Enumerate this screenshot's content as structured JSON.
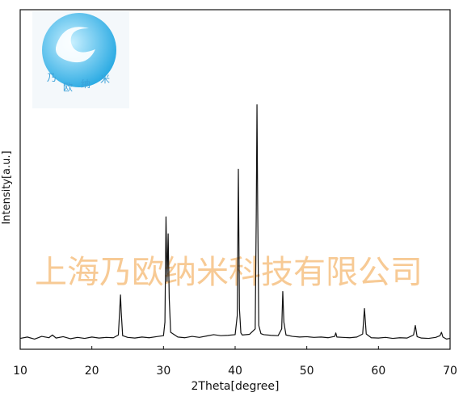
{
  "chart_data": {
    "type": "line",
    "xlabel": "2Theta[degree]",
    "ylabel": "Intensity[a.u.]",
    "watermark": "上海乃欧纳米科技有限公司",
    "logo_text": [
      "乃",
      "欧",
      "纳",
      "米"
    ],
    "color": "#111111",
    "xlim": [
      10,
      70
    ],
    "xticks": [
      10,
      20,
      30,
      40,
      50,
      60,
      70
    ],
    "ylim": [
      0,
      100
    ],
    "x": [
      10,
      11,
      12,
      13,
      14,
      14.5,
      15,
      16,
      17,
      18,
      19,
      20,
      21,
      22,
      23,
      23.7,
      23.9,
      24.0,
      24.1,
      24.3,
      25,
      26,
      27,
      28,
      29,
      30,
      30.2,
      30.35,
      30.5,
      30.65,
      30.8,
      31.0,
      32,
      33,
      34,
      35,
      36,
      37,
      38,
      39,
      40,
      40.3,
      40.45,
      40.6,
      40.8,
      41,
      42,
      42.8,
      42.95,
      43.05,
      43.15,
      43.3,
      43.6,
      44,
      45,
      46,
      46.5,
      46.65,
      46.8,
      47.1,
      48,
      49,
      50,
      51,
      52,
      53,
      53.9,
      54.05,
      54.2,
      55,
      56,
      57,
      57.8,
      58.05,
      58.3,
      59,
      60,
      61,
      62,
      63,
      64,
      64.9,
      65.15,
      65.4,
      66,
      67,
      68,
      68.6,
      68.8,
      69,
      69.5,
      70
    ],
    "values": [
      3.2,
      3.6,
      3.0,
      3.8,
      3.4,
      4.2,
      3.3,
      3.7,
      3.1,
      3.5,
      3.2,
      3.6,
      3.3,
      3.5,
      3.4,
      4.2,
      12,
      16,
      11,
      4.0,
      3.5,
      3.3,
      3.6,
      3.4,
      3.7,
      4.0,
      8,
      39,
      20,
      34,
      15,
      5,
      3.6,
      3.4,
      3.8,
      3.5,
      3.9,
      4.3,
      4.0,
      4.1,
      4.3,
      10,
      53,
      12,
      4.8,
      4.2,
      4.4,
      6,
      40,
      72,
      41,
      7,
      4.6,
      4.3,
      4.1,
      4.0,
      6,
      17,
      8,
      4.2,
      3.8,
      3.6,
      3.7,
      3.5,
      3.6,
      3.4,
      3.8,
      4.8,
      3.6,
      3.5,
      3.4,
      3.6,
      4.5,
      12,
      4.5,
      3.4,
      3.3,
      3.5,
      3.2,
      3.4,
      3.3,
      4.2,
      7,
      3.7,
      3.3,
      3.2,
      3.5,
      4,
      5,
      3.6,
      3.0,
      3.2
    ]
  }
}
